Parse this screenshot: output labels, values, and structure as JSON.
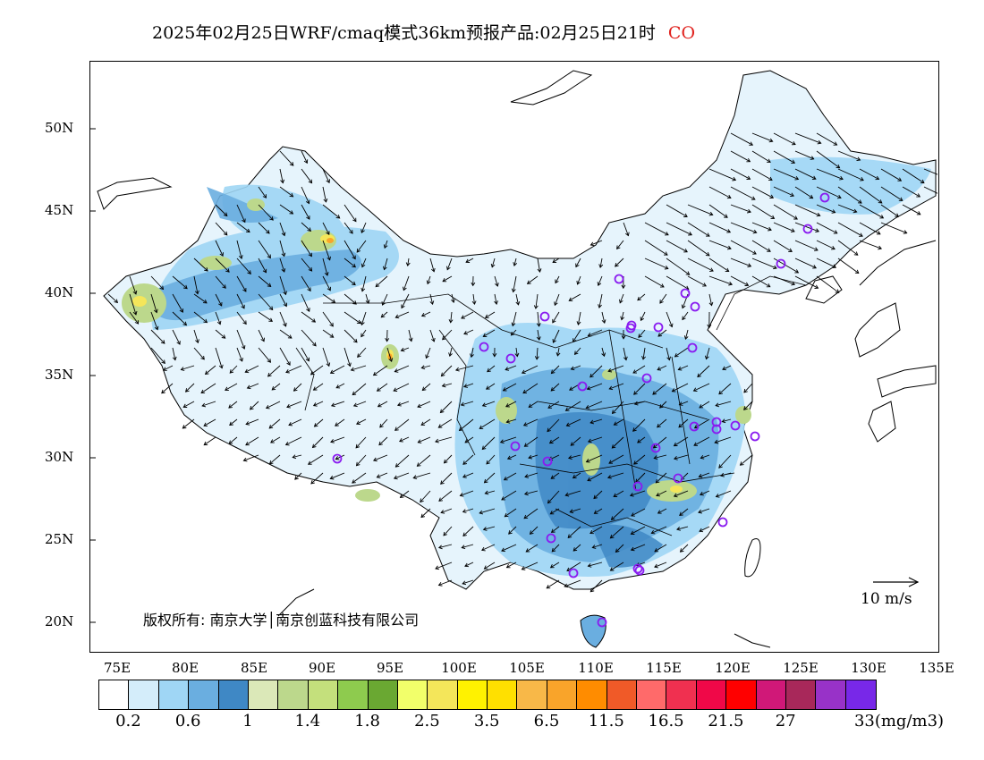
{
  "title": {
    "text": "2025年02月25日WRF/cmaq模式36km预报产品:02月25日21时",
    "species": "CO"
  },
  "axes": {
    "lat_labels": [
      "50N",
      "45N",
      "40N",
      "35N",
      "30N",
      "25N",
      "20N"
    ],
    "lon_labels": [
      "75E",
      "80E",
      "85E",
      "90E",
      "95E",
      "100E",
      "105E",
      "110E",
      "115E",
      "120E",
      "125E",
      "130E",
      "135E"
    ]
  },
  "copyright": "版权所有: 南京大学│南京创蓝科技有限公司",
  "wind_reference": "10 m/s",
  "colorbar": {
    "colors": [
      "#ffffff",
      "#d4edfa",
      "#9fd6f5",
      "#6aaee0",
      "#3f88c5",
      "#dbe8b8",
      "#bcd88c",
      "#c4e07c",
      "#8ecb4e",
      "#6aa832",
      "#f2ff6a",
      "#f4e65a",
      "#fff200",
      "#ffe000",
      "#f8b848",
      "#f9a42a",
      "#ff8c00",
      "#f05a28",
      "#ff6a6a",
      "#f03050",
      "#f00848",
      "#ff0000",
      "#d01878",
      "#a8285a",
      "#9832c8",
      "#7828e8"
    ],
    "labels": [
      "0.2",
      "0.6",
      "1",
      "1.4",
      "1.8",
      "2.5",
      "3.5",
      "6.5",
      "11.5",
      "16.5",
      "21.5",
      "27",
      "33(mg/m3)"
    ]
  },
  "stations": 34
}
